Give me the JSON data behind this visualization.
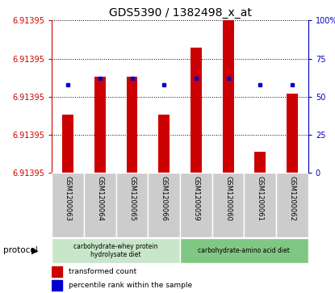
{
  "title": "GDS5390 / 1382498_x_at",
  "samples": [
    "GSM1200063",
    "GSM1200064",
    "GSM1200065",
    "GSM1200066",
    "GSM1200059",
    "GSM1200060",
    "GSM1200061",
    "GSM1200062"
  ],
  "red_values": [
    0.38,
    0.63,
    0.63,
    0.38,
    0.82,
    1.0,
    0.14,
    0.52
  ],
  "blue_values": [
    58,
    62,
    62,
    58,
    62,
    62,
    58,
    58
  ],
  "y_min": 6.9139,
  "y_max": 6.914,
  "ytick_labels": [
    "6.91395",
    "6.91395",
    "6.91395",
    "6.91395",
    "6.91395"
  ],
  "yticks_right": [
    0,
    25,
    50,
    75,
    100
  ],
  "group1_label": "carbohydrate-whey protein\nhydrolysate diet",
  "group2_label": "carbohydrate-amino acid diet",
  "group1_indices": [
    0,
    1,
    2,
    3
  ],
  "group2_indices": [
    4,
    5,
    6,
    7
  ],
  "protocol_label": "protocol",
  "legend_red": "transformed count",
  "legend_blue": "percentile rank within the sample",
  "group1_color": "#c8e6c9",
  "group2_color": "#81c784",
  "bar_color_red": "#cc0000",
  "bar_color_blue": "#0000cc",
  "title_fontsize": 10,
  "tick_fontsize": 7,
  "axis_color_red": "#cc0000",
  "axis_color_blue": "#0000bb",
  "bar_width": 0.35
}
